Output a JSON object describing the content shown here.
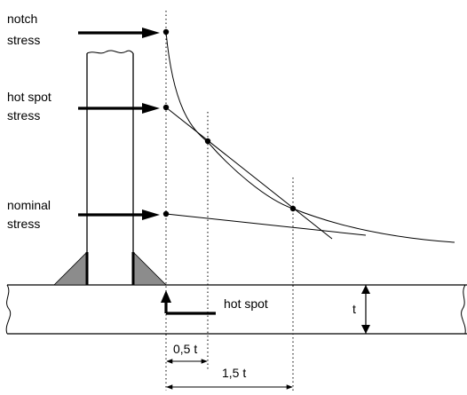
{
  "labels": {
    "notch_line1": "notch",
    "notch_line2": "stress",
    "hotspot_stress_line1": "hot spot",
    "hotspot_stress_line2": "stress",
    "nominal_line1": "nominal",
    "nominal_line2": "stress",
    "hot_spot": "hot spot",
    "thickness": "t",
    "dim_half_t": "0,5 t",
    "dim_one_half_t": "1,5 t"
  },
  "colors": {
    "line": "#000000",
    "weld_fill": "#8c8c8c",
    "background": "#ffffff"
  }
}
